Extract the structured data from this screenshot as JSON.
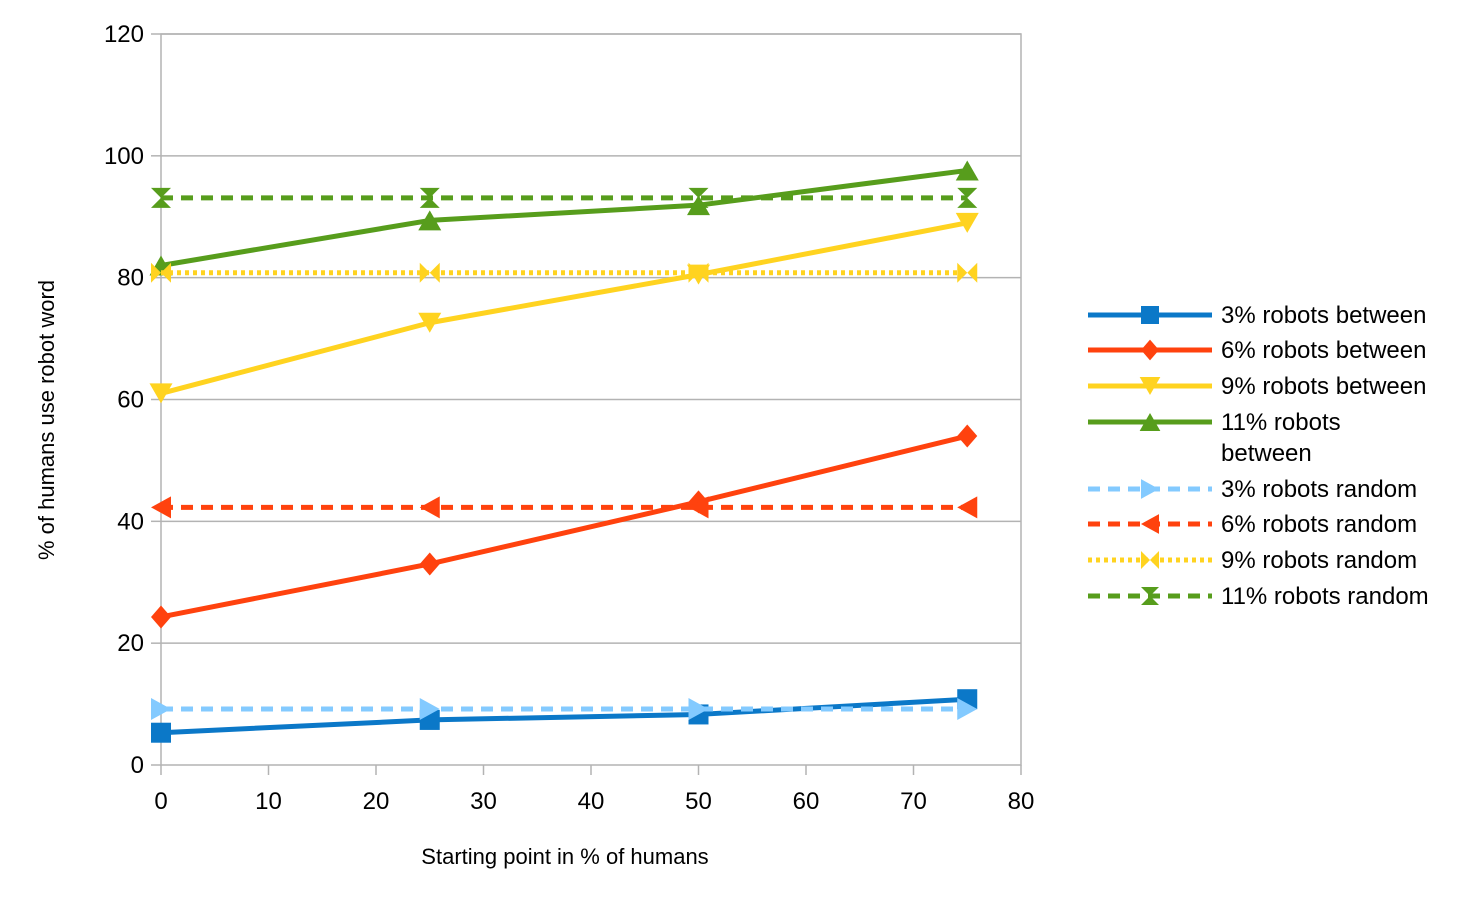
{
  "chart_data": {
    "type": "line",
    "title": "",
    "xlabel": "Starting point in % of humans",
    "ylabel": "% of humans use robot word",
    "xlim": [
      0,
      80
    ],
    "ylim": [
      0,
      120
    ],
    "xticks": [
      0,
      10,
      20,
      30,
      40,
      50,
      60,
      70,
      80
    ],
    "yticks": [
      0,
      20,
      40,
      60,
      80,
      100,
      120
    ],
    "grid": "horizontal",
    "legend_position": "right",
    "x": [
      0,
      25,
      50,
      75
    ],
    "series": [
      {
        "name": "3% robots between",
        "values": [
          5.3,
          7.4,
          8.3,
          10.8
        ],
        "color": "#0b78c8",
        "marker": "square",
        "dash": "solid"
      },
      {
        "name": "6% robots between",
        "values": [
          24.3,
          33,
          43.2,
          54
        ],
        "color": "#ff420e",
        "marker": "diamond",
        "dash": "solid"
      },
      {
        "name": "9% robots between",
        "values": [
          61,
          72.6,
          80.5,
          89
        ],
        "color": "#ffd320",
        "marker": "triangle-down",
        "dash": "solid"
      },
      {
        "name": "11% robots between",
        "values": [
          82,
          89.4,
          91.9,
          97.6
        ],
        "color": "#579d1c",
        "marker": "triangle-up",
        "dash": "solid"
      },
      {
        "name": "3% robots random",
        "values": [
          9.2,
          9.2,
          9.2,
          9.2
        ],
        "color": "#83caff",
        "marker": "triangle-right",
        "dash": "dashed"
      },
      {
        "name": "6% robots random",
        "values": [
          42.3,
          42.3,
          42.3,
          42.3
        ],
        "color": "#ff420e",
        "marker": "triangle-left",
        "dash": "dashed"
      },
      {
        "name": "9% robots random",
        "values": [
          80.8,
          80.8,
          80.8,
          80.8
        ],
        "color": "#ffd320",
        "marker": "bowtie",
        "dash": "dotted"
      },
      {
        "name": "11% robots random",
        "values": [
          93.1,
          93.1,
          93.1,
          93.1
        ],
        "color": "#579d1c",
        "marker": "hourglass",
        "dash": "dashed"
      }
    ]
  }
}
